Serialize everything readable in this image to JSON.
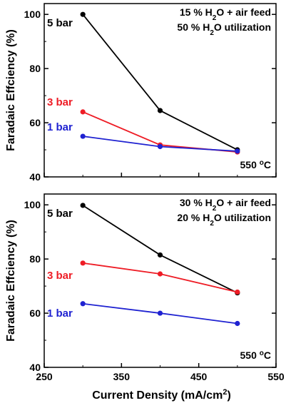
{
  "chart_data": [
    {
      "type": "line",
      "x": [
        300,
        400,
        500
      ],
      "series": [
        {
          "name": "5 bar",
          "values": [
            100,
            64.5,
            50
          ],
          "color": "#000000"
        },
        {
          "name": "3 bar",
          "values": [
            64,
            51.8,
            49.2
          ],
          "color": "#ee1c25"
        },
        {
          "name": "1 bar",
          "values": [
            55,
            51.2,
            49.5
          ],
          "color": "#1f22d1"
        }
      ],
      "annotation_lines": [
        {
          "pre": "15 % H",
          "sub": "2",
          "post": "O + air feed"
        },
        {
          "pre": "50 % H",
          "sub": "2",
          "post": "O utilization"
        }
      ],
      "temperature": {
        "pre": "550 ",
        "sup": "o",
        "post": "C"
      },
      "xlim": [
        250,
        550
      ],
      "ylim": [
        40,
        104
      ],
      "yticks": [
        40,
        60,
        80,
        100
      ],
      "ytick_labels": [
        "40",
        "60",
        "80",
        "100"
      ],
      "ylabel": "Faradaic Effciency (%)",
      "grid": false
    },
    {
      "type": "line",
      "x": [
        300,
        400,
        500
      ],
      "series": [
        {
          "name": "5 bar",
          "values": [
            99.8,
            81.5,
            67.5
          ],
          "color": "#000000"
        },
        {
          "name": "3 bar",
          "values": [
            78.5,
            74.5,
            67.8
          ],
          "color": "#ee1c25"
        },
        {
          "name": "1 bar",
          "values": [
            63.5,
            60,
            56.2
          ],
          "color": "#1f22d1"
        }
      ],
      "annotation_lines": [
        {
          "pre": "30 % H",
          "sub": "2",
          "post": "O + air feed"
        },
        {
          "pre": "20 % H",
          "sub": "2",
          "post": "O utilization"
        }
      ],
      "temperature": {
        "pre": "550 ",
        "sup": "o",
        "post": "C"
      },
      "xlim": [
        250,
        550
      ],
      "ylim": [
        40,
        104
      ],
      "yticks": [
        40,
        60,
        80,
        100
      ],
      "ytick_labels": [
        "40",
        "60",
        "80",
        "100"
      ],
      "xticks": [
        250,
        350,
        450,
        550
      ],
      "xtick_labels": [
        "250",
        "350",
        "450",
        "550"
      ],
      "ylabel": "Faradaic Effciency (%)",
      "xlabel": {
        "pre": "Current Density (mA/cm",
        "sup": "2",
        "post": ")"
      },
      "grid": false
    }
  ]
}
